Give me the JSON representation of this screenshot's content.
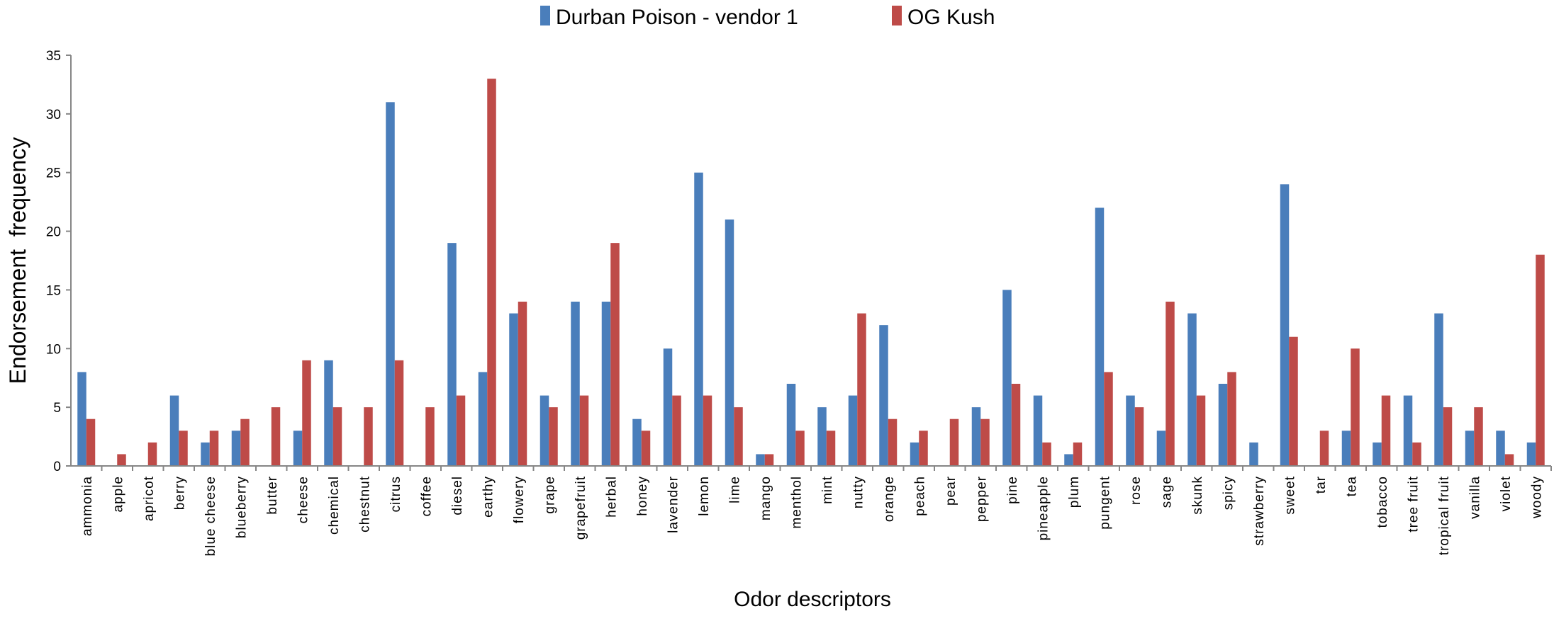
{
  "chart_data": {
    "type": "bar",
    "title": "",
    "xlabel": "Odor descriptors",
    "ylabel": "Endorsement  frequency",
    "ylim": [
      0,
      35
    ],
    "yticks": [
      0,
      5,
      10,
      15,
      20,
      25,
      30,
      35
    ],
    "grid": false,
    "legend_position": "top-center",
    "categories": [
      "ammonia",
      "apple",
      "apricot",
      "berry",
      "blue cheese",
      "blueberry",
      "butter",
      "cheese",
      "chemical",
      "chestnut",
      "citrus",
      "coffee",
      "diesel",
      "earthy",
      "flowery",
      "grape",
      "grapefruit",
      "herbal",
      "honey",
      "lavender",
      "lemon",
      "lime",
      "mango",
      "menthol",
      "mint",
      "nutty",
      "orange",
      "peach",
      "pear",
      "pepper",
      "pine",
      "pineapple",
      "plum",
      "pungent",
      "rose",
      "sage",
      "skunk",
      "spicy",
      "strawberry",
      "sweet",
      "tar",
      "tea",
      "tobacco",
      "tree fruit",
      "tropical fruit",
      "vanilla",
      "violet",
      "woody"
    ],
    "series": [
      {
        "name": "Durban Poison - vendor 1",
        "color": "#4a7ebb",
        "values": [
          8,
          0,
          0,
          6,
          2,
          3,
          0,
          3,
          9,
          0,
          31,
          0,
          19,
          8,
          13,
          6,
          14,
          14,
          4,
          10,
          25,
          21,
          1,
          7,
          5,
          6,
          12,
          2,
          0,
          5,
          15,
          6,
          1,
          22,
          6,
          3,
          13,
          7,
          2,
          24,
          0,
          3,
          2,
          6,
          13,
          3,
          3,
          2
        ]
      },
      {
        "name": "OG Kush",
        "color": "#be4b48",
        "values": [
          4,
          1,
          2,
          3,
          3,
          4,
          5,
          9,
          5,
          5,
          9,
          5,
          6,
          33,
          14,
          5,
          6,
          19,
          3,
          6,
          6,
          5,
          1,
          3,
          3,
          13,
          4,
          3,
          4,
          4,
          7,
          2,
          2,
          8,
          5,
          14,
          6,
          8,
          0,
          11,
          3,
          10,
          6,
          2,
          5,
          5,
          1,
          18
        ]
      }
    ]
  }
}
